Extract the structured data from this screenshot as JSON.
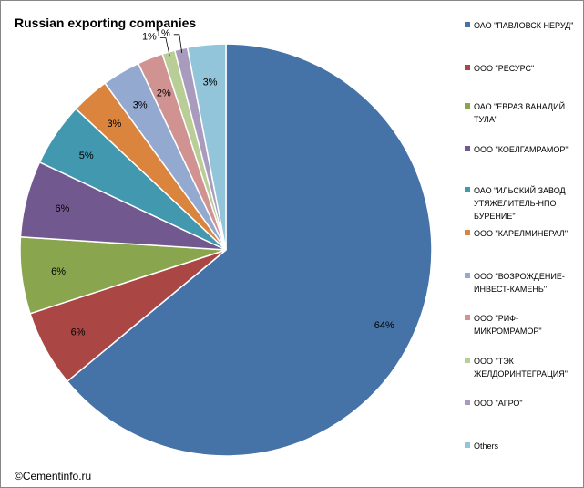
{
  "chart_data": {
    "type": "pie",
    "title": "Russian exporting companies",
    "slices": [
      {
        "label": "ОАО \"ПАВЛОВСК НЕРУД\"",
        "value": 64,
        "value_label": "64%",
        "color": "#4572A7"
      },
      {
        "label": "ООО \"РЕСУРС\"",
        "value": 6,
        "value_label": "6%",
        "color": "#AA4643"
      },
      {
        "label": "ОАО \"ЕВРАЗ ВАНАДИЙ ТУЛА\"",
        "value": 6,
        "value_label": "6%",
        "color": "#89A54E"
      },
      {
        "label": "ООО \"КОЕЛГАМРАМОР\"",
        "value": 6,
        "value_label": "6%",
        "color": "#71588F"
      },
      {
        "label": "ОАО \"ИЛЬСКИЙ ЗАВОД УТЯЖЕЛИТЕЛЬ-НПО БУРЕНИЕ\"",
        "value": 5,
        "value_label": "5%",
        "color": "#4198AF"
      },
      {
        "label": "ООО \"КАРЕЛМИНЕРАЛ\"",
        "value": 3,
        "value_label": "3%",
        "color": "#DB843D"
      },
      {
        "label": "ООО \"ВОЗРОЖДЕНИЕ-ИНВЕСТ-КАМЕНЬ\"",
        "value": 3,
        "value_label": "3%",
        "color": "#93A9CF"
      },
      {
        "label": "ООО \"РИФ-МИКРОМРАМОР\"",
        "value": 2,
        "value_label": "2%",
        "color": "#D19392"
      },
      {
        "label": "ООО \"ТЭК ЖЕЛДОРИНТЕГРАЦИЯ\"",
        "value": 1,
        "value_label": "1%",
        "color": "#B9CD96"
      },
      {
        "label": "ООО \"АГРО\"",
        "value": 1,
        "value_label": "1%",
        "color": "#A99BBD"
      },
      {
        "label": "Others",
        "value": 3,
        "value_label": "3%",
        "color": "#92C5D9"
      }
    ],
    "legend_placement": "right"
  },
  "footer": {
    "credit": "©Cementinfo.ru"
  }
}
